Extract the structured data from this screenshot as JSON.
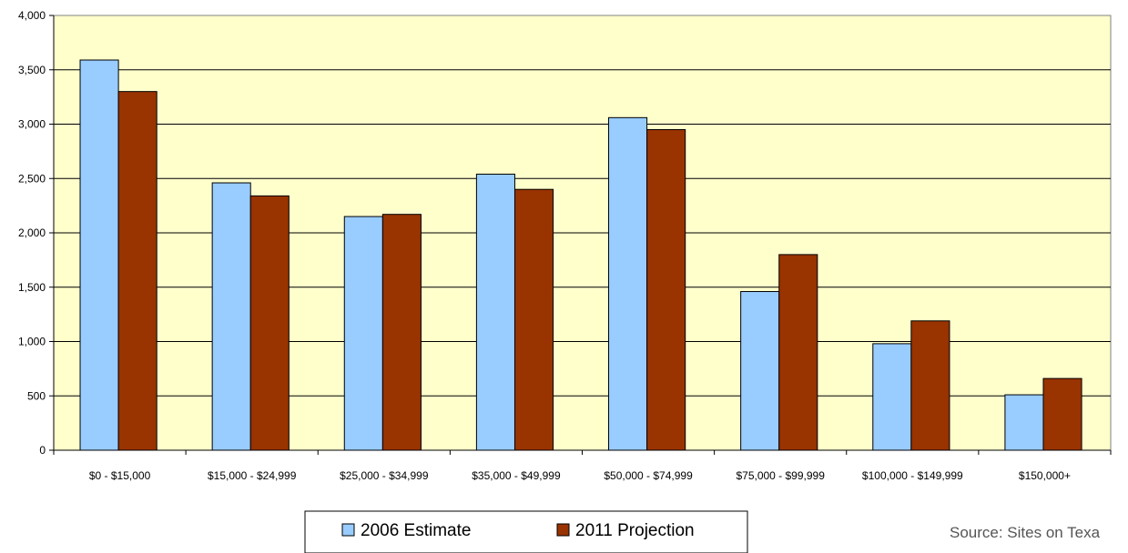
{
  "chart_data": {
    "type": "bar",
    "title": "",
    "xlabel": "",
    "ylabel": "",
    "categories": [
      "$0 - $15,000",
      "$15,000 - $24,999",
      "$25,000 - $34,999",
      "$35,000 - $49,999",
      "$50,000 - $74,999",
      "$75,000 - $99,999",
      "$100,000 - $149,999",
      "$150,000+"
    ],
    "series": [
      {
        "name": "2006 Estimate",
        "color": "#99ccff",
        "values": [
          3590,
          2460,
          2150,
          2540,
          3060,
          1460,
          980,
          510
        ]
      },
      {
        "name": "2011 Projection",
        "color": "#993300",
        "values": [
          3300,
          2340,
          2170,
          2400,
          2950,
          1800,
          1190,
          660
        ]
      }
    ],
    "ylim": [
      0,
      4000
    ],
    "yticks": [
      0,
      500,
      1000,
      1500,
      2000,
      2500,
      3000,
      3500,
      4000
    ],
    "ytick_labels": [
      "0",
      "500",
      "1,000",
      "1,500",
      "2,000",
      "2,500",
      "3,000",
      "3,500",
      "4,000"
    ],
    "grid": true,
    "plot_background": "#ffffcc",
    "legend": "bottom-center"
  },
  "source_note": "Source: Sites on Texa"
}
